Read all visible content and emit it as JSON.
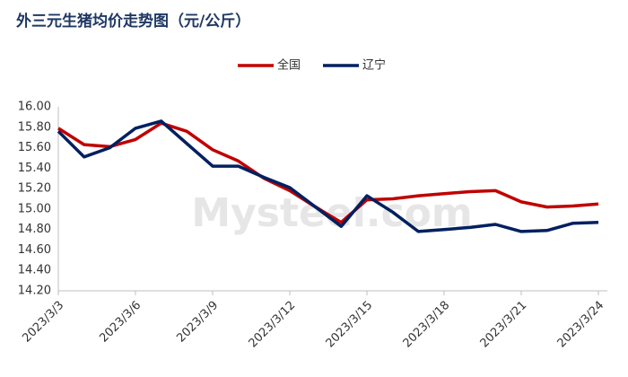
{
  "chart_data": {
    "type": "line",
    "title": "外三元生猪均价走势图（元/公斤）",
    "watermark": "Mysteel.com",
    "categories": [
      "2023/3/3",
      null,
      null,
      "2023/3/6",
      null,
      null,
      "2023/3/9",
      null,
      null,
      "2023/3/12",
      null,
      null,
      "2023/3/15",
      null,
      null,
      "2023/3/18",
      null,
      null,
      "2023/3/21",
      null,
      null,
      "2023/3/24"
    ],
    "series": [
      {
        "name": "全国",
        "color": "#c00000",
        "values": [
          15.79,
          15.63,
          15.61,
          15.68,
          15.84,
          15.76,
          15.58,
          15.47,
          15.3,
          15.18,
          15.02,
          14.87,
          15.09,
          15.1,
          15.13,
          15.15,
          15.17,
          15.18,
          15.07,
          15.02,
          15.03,
          15.05
        ]
      },
      {
        "name": "辽宁",
        "color": "#002060",
        "values": [
          15.76,
          15.51,
          15.6,
          15.79,
          15.86,
          15.64,
          15.42,
          15.42,
          15.31,
          15.21,
          15.02,
          14.83,
          15.13,
          14.97,
          14.78,
          14.8,
          14.82,
          14.85,
          14.78,
          14.79,
          14.86,
          14.87
        ]
      }
    ],
    "ylim": [
      14.2,
      16.0
    ],
    "yticks": [
      {
        "value": 14.2,
        "label": "14.20"
      },
      {
        "value": 14.4,
        "label": "14.40"
      },
      {
        "value": 14.6,
        "label": "14.60"
      },
      {
        "value": 14.8,
        "label": "14.80"
      },
      {
        "value": 15.0,
        "label": "15.00"
      },
      {
        "value": 15.2,
        "label": "15.20"
      },
      {
        "value": 15.4,
        "label": "15.40"
      },
      {
        "value": 15.6,
        "label": "15.60"
      },
      {
        "value": 15.8,
        "label": "15.80"
      },
      {
        "value": 16.0,
        "label": "16.00"
      }
    ],
    "legend": "top",
    "grid": false
  }
}
